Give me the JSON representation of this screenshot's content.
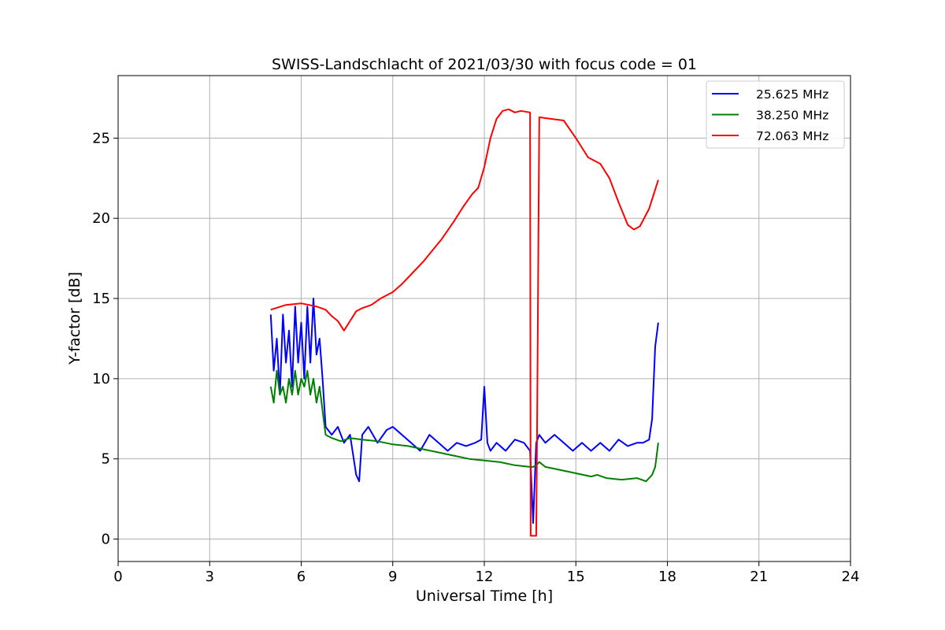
{
  "chart_data": {
    "type": "line",
    "title": "SWISS-Landschlacht of 2021/03/30 with focus code = 01",
    "xlabel": "Universal Time [h]",
    "ylabel": "Y-factor [dB]",
    "xlim": [
      0,
      24
    ],
    "ylim": [
      -1.4,
      28.9
    ],
    "xticks": [
      0,
      3,
      6,
      9,
      12,
      15,
      18,
      21,
      24
    ],
    "yticks": [
      0,
      5,
      10,
      15,
      20,
      25
    ],
    "grid": true,
    "legend_position": "top-right",
    "series": [
      {
        "name": "25.625 MHz",
        "color": "#0000ff",
        "x": [
          5.0,
          5.1,
          5.2,
          5.3,
          5.4,
          5.5,
          5.6,
          5.7,
          5.8,
          5.9,
          6.0,
          6.1,
          6.2,
          6.3,
          6.4,
          6.5,
          6.6,
          6.7,
          6.8,
          7.0,
          7.2,
          7.4,
          7.6,
          7.8,
          7.9,
          8.0,
          8.2,
          8.5,
          8.8,
          9.0,
          9.3,
          9.6,
          9.9,
          10.2,
          10.5,
          10.8,
          11.1,
          11.4,
          11.7,
          11.9,
          12.0,
          12.1,
          12.2,
          12.4,
          12.7,
          13.0,
          13.3,
          13.5,
          13.6,
          13.7,
          13.8,
          14.0,
          14.3,
          14.6,
          14.9,
          15.2,
          15.5,
          15.8,
          16.1,
          16.4,
          16.7,
          17.0,
          17.2,
          17.4,
          17.5,
          17.6,
          17.7
        ],
        "y": [
          14.0,
          10.5,
          12.5,
          9.0,
          14.0,
          11.0,
          13.0,
          9.5,
          14.5,
          11.0,
          13.5,
          10.0,
          14.5,
          11.0,
          15.0,
          11.5,
          12.5,
          10.0,
          7.0,
          6.5,
          7.0,
          6.0,
          6.5,
          4.0,
          3.6,
          6.5,
          7.0,
          6.0,
          6.8,
          7.0,
          6.5,
          6.0,
          5.5,
          6.5,
          6.0,
          5.5,
          6.0,
          5.8,
          6.0,
          6.2,
          9.5,
          6.0,
          5.5,
          6.0,
          5.5,
          6.2,
          6.0,
          5.5,
          1.0,
          6.0,
          6.5,
          6.0,
          6.5,
          6.0,
          5.5,
          6.0,
          5.5,
          6.0,
          5.5,
          6.2,
          5.8,
          6.0,
          6.0,
          6.2,
          7.5,
          12.0,
          13.5
        ]
      },
      {
        "name": "38.250 MHz",
        "color": "#008000",
        "x": [
          5.0,
          5.1,
          5.2,
          5.3,
          5.4,
          5.5,
          5.6,
          5.7,
          5.8,
          5.9,
          6.0,
          6.1,
          6.2,
          6.3,
          6.4,
          6.5,
          6.6,
          6.7,
          6.8,
          7.0,
          7.3,
          7.6,
          8.0,
          8.5,
          9.0,
          9.5,
          10.0,
          10.5,
          11.0,
          11.5,
          12.0,
          12.5,
          13.0,
          13.5,
          13.6,
          13.7,
          13.8,
          14.0,
          14.5,
          15.0,
          15.5,
          15.7,
          16.0,
          16.5,
          17.0,
          17.3,
          17.5,
          17.6,
          17.7
        ],
        "y": [
          9.5,
          8.5,
          10.5,
          9.0,
          9.5,
          8.5,
          10.0,
          9.0,
          10.5,
          9.0,
          10.0,
          9.5,
          10.5,
          9.0,
          10.0,
          8.5,
          9.5,
          8.0,
          6.5,
          6.3,
          6.1,
          6.3,
          6.2,
          6.1,
          5.9,
          5.8,
          5.6,
          5.4,
          5.2,
          5.0,
          4.9,
          4.8,
          4.6,
          4.5,
          4.5,
          4.6,
          4.8,
          4.5,
          4.3,
          4.1,
          3.9,
          4.0,
          3.8,
          3.7,
          3.8,
          3.6,
          4.0,
          4.5,
          6.0
        ]
      },
      {
        "name": "72.063 MHz",
        "color": "#ff0000",
        "x": [
          5.0,
          5.5,
          6.0,
          6.5,
          6.8,
          7.0,
          7.2,
          7.4,
          7.6,
          7.8,
          8.0,
          8.3,
          8.6,
          9.0,
          9.3,
          9.6,
          10.0,
          10.3,
          10.6,
          11.0,
          11.3,
          11.6,
          11.8,
          12.0,
          12.2,
          12.4,
          12.6,
          12.8,
          13.0,
          13.2,
          13.5,
          13.52,
          13.7,
          13.72,
          13.8,
          14.2,
          14.6,
          15.0,
          15.4,
          15.8,
          16.1,
          16.4,
          16.7,
          16.9,
          17.1,
          17.4,
          17.7
        ],
        "y": [
          14.3,
          14.6,
          14.7,
          14.5,
          14.3,
          13.9,
          13.6,
          13.0,
          13.6,
          14.2,
          14.4,
          14.6,
          15.0,
          15.4,
          15.9,
          16.5,
          17.3,
          18.0,
          18.7,
          19.8,
          20.7,
          21.5,
          21.9,
          23.2,
          25.0,
          26.2,
          26.7,
          26.8,
          26.6,
          26.7,
          26.6,
          0.2,
          0.2,
          4.0,
          26.3,
          26.2,
          26.1,
          25.0,
          23.8,
          23.4,
          22.5,
          21.0,
          19.6,
          19.3,
          19.5,
          20.6,
          22.4
        ]
      }
    ]
  }
}
